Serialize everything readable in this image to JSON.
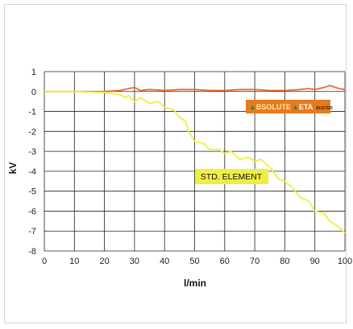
{
  "chart_data": {
    "type": "line",
    "xlabel": "l/min",
    "ylabel": "kV",
    "xlim": [
      0,
      100
    ],
    "ylim": [
      -8,
      1
    ],
    "xticks": [
      0,
      10,
      20,
      30,
      40,
      50,
      60,
      70,
      80,
      90,
      100
    ],
    "yticks": [
      1,
      0,
      -1,
      -2,
      -3,
      -4,
      -5,
      -6,
      -7,
      -8
    ],
    "grid": true,
    "series": [
      {
        "name": "ABSOLUTE ETA BUSTER",
        "color": "#e86a2b",
        "x": [
          0,
          10,
          20,
          25,
          28,
          30,
          32,
          35,
          40,
          45,
          50,
          55,
          60,
          65,
          70,
          75,
          80,
          85,
          88,
          90,
          93,
          95,
          98,
          100
        ],
        "y": [
          0,
          0,
          0,
          0.05,
          0.15,
          0.2,
          0.05,
          0.1,
          0.05,
          0.1,
          0.1,
          0.05,
          0.05,
          0.1,
          0.1,
          0.05,
          0.05,
          0.1,
          0.15,
          0.1,
          0.2,
          0.3,
          0.15,
          0.1
        ]
      },
      {
        "name": "STD. ELEMENT",
        "color": "#eeee44",
        "x": [
          0,
          10,
          20,
          25,
          27,
          28,
          30,
          32,
          35,
          38,
          40,
          43,
          45,
          47,
          48,
          50,
          53,
          55,
          58,
          60,
          62,
          65,
          68,
          70,
          72,
          75,
          78,
          80,
          83,
          85,
          88,
          90,
          93,
          95,
          98,
          100
        ],
        "y": [
          0,
          0,
          -0.05,
          -0.15,
          -0.3,
          -0.2,
          -0.5,
          -0.3,
          -0.6,
          -0.5,
          -0.8,
          -0.9,
          -1.3,
          -1.5,
          -2.0,
          -2.5,
          -2.6,
          -2.9,
          -2.9,
          -3.1,
          -3.0,
          -3.4,
          -3.3,
          -3.5,
          -3.4,
          -3.8,
          -4.4,
          -4.5,
          -4.9,
          -5.3,
          -5.5,
          -6.0,
          -6.1,
          -6.5,
          -6.8,
          -7.1
        ]
      }
    ],
    "annotations": [
      "STD. ELEMENT"
    ],
    "logo": {
      "text": "ABSOLUTE ETA BUSTER",
      "background": "#e87a1e",
      "accent": "#2e8b2e"
    }
  }
}
